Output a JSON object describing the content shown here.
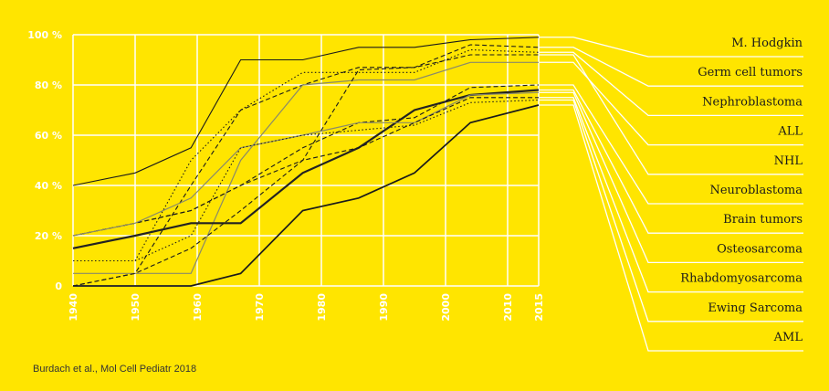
{
  "chart_data": {
    "type": "line",
    "x": [
      1940,
      1950,
      1960,
      1970,
      1980,
      1990,
      2000,
      2010,
      2015
    ],
    "x_tick_labels": [
      "1940",
      "1950",
      "1960",
      "1970",
      "1980",
      "1990",
      "2000",
      "2010",
      "2015"
    ],
    "y_tick_labels": [
      "100 %",
      "80 %",
      "60 %",
      "40 %",
      "20 %",
      "0"
    ],
    "y_ticks": [
      100,
      80,
      60,
      40,
      20,
      0
    ],
    "ylim": [
      0,
      100
    ],
    "xlim": [
      1940,
      2015
    ],
    "grid": true,
    "legend_position": "right",
    "series": [
      {
        "name": "M. Hodgkin",
        "style": "solid-thin",
        "values": [
          [
            1940,
            40
          ],
          [
            1950,
            45
          ],
          [
            1959,
            55
          ],
          [
            1967,
            90
          ],
          [
            1977,
            90
          ],
          [
            1986,
            95
          ],
          [
            1995,
            95
          ],
          [
            2004,
            98
          ],
          [
            2015,
            99
          ]
        ]
      },
      {
        "name": "Germ cell tumors",
        "style": "dashed",
        "values": [
          [
            1940,
            0
          ],
          [
            1950,
            5
          ],
          [
            1959,
            40
          ],
          [
            1967,
            70
          ],
          [
            1977,
            80
          ],
          [
            1986,
            87
          ],
          [
            1995,
            87
          ],
          [
            2004,
            96
          ],
          [
            2015,
            95
          ]
        ]
      },
      {
        "name": "Nephroblastoma",
        "style": "dotted",
        "values": [
          [
            1940,
            10
          ],
          [
            1950,
            10
          ],
          [
            1959,
            50
          ],
          [
            1967,
            70
          ],
          [
            1977,
            85
          ],
          [
            1986,
            85
          ],
          [
            1995,
            85
          ],
          [
            2004,
            94
          ],
          [
            2015,
            93
          ]
        ]
      },
      {
        "name": "ALL",
        "style": "grey",
        "values": [
          [
            1940,
            5
          ],
          [
            1950,
            5
          ],
          [
            1959,
            5
          ],
          [
            1967,
            50
          ],
          [
            1977,
            80
          ],
          [
            1986,
            82
          ],
          [
            1995,
            82
          ],
          [
            2004,
            89
          ],
          [
            2015,
            89
          ]
        ]
      },
      {
        "name": "NHL",
        "style": "dashed",
        "values": [
          [
            1940,
            20
          ],
          [
            1950,
            25
          ],
          [
            1959,
            30
          ],
          [
            1967,
            40
          ],
          [
            1977,
            50
          ],
          [
            1986,
            86
          ],
          [
            1995,
            87
          ],
          [
            2004,
            92
          ],
          [
            2015,
            92
          ]
        ]
      },
      {
        "name": "Neuroblastoma",
        "style": "dashed",
        "values": [
          [
            1940,
            20
          ],
          [
            1950,
            25
          ],
          [
            1959,
            30
          ],
          [
            1967,
            40
          ],
          [
            1977,
            55
          ],
          [
            1986,
            65
          ],
          [
            1995,
            67
          ],
          [
            2004,
            79
          ],
          [
            2015,
            80
          ]
        ]
      },
      {
        "name": "Brain tumors",
        "style": "thick-solid",
        "values": [
          [
            1940,
            15
          ],
          [
            1950,
            20
          ],
          [
            1959,
            25
          ],
          [
            1967,
            25
          ],
          [
            1977,
            45
          ],
          [
            1986,
            55
          ],
          [
            1995,
            70
          ],
          [
            2004,
            76
          ],
          [
            2015,
            78
          ]
        ]
      },
      {
        "name": "Osteosarcoma",
        "style": "grey",
        "values": [
          [
            1940,
            20
          ],
          [
            1950,
            25
          ],
          [
            1959,
            35
          ],
          [
            1967,
            55
          ],
          [
            1977,
            60
          ],
          [
            1986,
            65
          ],
          [
            1995,
            65
          ],
          [
            2004,
            76
          ],
          [
            2015,
            77
          ]
        ]
      },
      {
        "name": "Rhabdomyosarcoma",
        "style": "dashed",
        "values": [
          [
            1940,
            0
          ],
          [
            1950,
            5
          ],
          [
            1959,
            15
          ],
          [
            1967,
            30
          ],
          [
            1977,
            50
          ],
          [
            1986,
            55
          ],
          [
            1995,
            65
          ],
          [
            2004,
            75
          ],
          [
            2015,
            75
          ]
        ]
      },
      {
        "name": "Ewing Sarcoma",
        "style": "dotted",
        "values": [
          [
            1940,
            10
          ],
          [
            1950,
            10
          ],
          [
            1959,
            20
          ],
          [
            1967,
            55
          ],
          [
            1977,
            60
          ],
          [
            1986,
            62
          ],
          [
            1995,
            64
          ],
          [
            2004,
            73
          ],
          [
            2015,
            74
          ]
        ]
      },
      {
        "name": "AML",
        "style": "solid-dark",
        "values": [
          [
            1940,
            0
          ],
          [
            1950,
            0
          ],
          [
            1959,
            0
          ],
          [
            1967,
            5
          ],
          [
            1977,
            30
          ],
          [
            1986,
            35
          ],
          [
            1995,
            45
          ],
          [
            2004,
            65
          ],
          [
            2015,
            72
          ]
        ]
      }
    ]
  },
  "source": "Burdach et al., Mol Cell Pediatr 2018",
  "colors": {
    "background": "#FFE500",
    "grid": "#ffffff",
    "line_dark": "#1a1a1a",
    "line_grey": "#8a8a6a"
  }
}
